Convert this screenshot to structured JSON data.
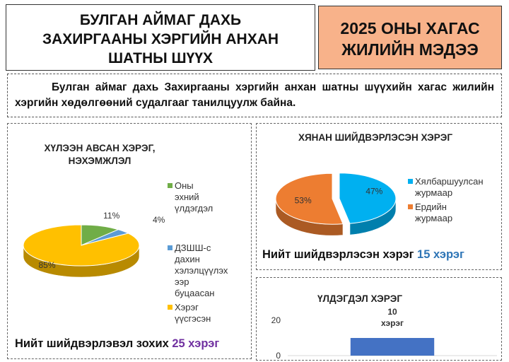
{
  "header": {
    "title_lines": [
      "БУЛГАН АЙМАГ ДАХЬ",
      "ЗАХИРГААНЫ ХЭРГИЙН АНХАН",
      "ШАТНЫ  ШҮҮХ"
    ],
    "report_lines": [
      "2025 ОНЫ ХАГАС",
      "ЖИЛИЙН МЭДЭЭ"
    ],
    "report_bg": "#f8b28a"
  },
  "intro": "Булган аймаг дахь Захиргааны хэргийн анхан шатны шүүхийн хагас жилийн хэргийн хөдөлгөөний судалгааг танилцуулж байна.",
  "chart_data": [
    {
      "type": "pie",
      "title_lines": [
        "ХҮЛЭЭН АВСАН ХЭРЭГ,",
        "НЭХЭМЖЛЭЛ"
      ],
      "slices": [
        {
          "label": "Оны эхний үлдэгдэл",
          "legend_lines": [
            "Оны эхний",
            "үлдэгдэл"
          ],
          "value": 11,
          "display": "11%",
          "color": "#70ad47"
        },
        {
          "label": "ДЗШШ-с дахин хэлэлцүүлэх ээр буцаасан",
          "legend_lines": [
            "ДЗШШ-с",
            "дахин",
            "хэлэлцүүлэх",
            "ээр буцаасан"
          ],
          "value": 4,
          "display": "4%",
          "color": "#5b9bd5"
        },
        {
          "label": "Хэрэг үүсгэсэн",
          "legend_lines": [
            "Хэрэг",
            "үүсгэсэн"
          ],
          "value": 85,
          "display": "85%",
          "color": "#ffc000"
        }
      ],
      "total_text": "Нийт шийдвэрлэвэл зохих ",
      "total_value": "25 хэрэг",
      "total_color": "#7030a0"
    },
    {
      "type": "pie",
      "title_lines": [
        "ХЯНАН ШИЙДВЭРЛЭСЭН ХЭРЭГ"
      ],
      "slices": [
        {
          "label": "Хялбаршуулсан журмаар",
          "legend_lines": [
            "Хялбаршуулсан",
            "журмаар"
          ],
          "value": 47,
          "display": "47%",
          "color": "#00b0f0"
        },
        {
          "label": "Ердийн журмаар",
          "legend_lines": [
            "Ердийн",
            "журмаар"
          ],
          "value": 53,
          "display": "53%",
          "color": "#ed7d31"
        }
      ],
      "total_text": "Нийт шийдвэрлэсэн хэрэг ",
      "total_value": "15 хэрэг",
      "total_color": "#2e75b6"
    },
    {
      "type": "bar",
      "title": "ҮЛДЭГДЭЛ ХЭРЭГ",
      "categories": [
        ""
      ],
      "values": [
        10
      ],
      "data_label_lines": [
        "10",
        "хэрэг"
      ],
      "ylim": [
        0,
        20
      ],
      "yticks": [
        0,
        20
      ],
      "bar_color": "#4472c4"
    }
  ]
}
